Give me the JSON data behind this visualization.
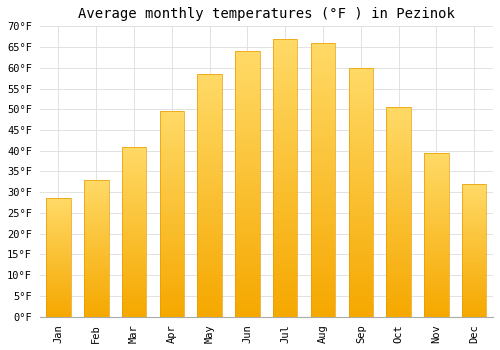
{
  "title": "Average monthly temperatures (°F ) in Pezinok",
  "months": [
    "Jan",
    "Feb",
    "Mar",
    "Apr",
    "May",
    "Jun",
    "Jul",
    "Aug",
    "Sep",
    "Oct",
    "Nov",
    "Dec"
  ],
  "values": [
    28.5,
    33,
    41,
    49.5,
    58.5,
    64,
    67,
    66,
    60,
    50.5,
    39.5,
    32
  ],
  "bar_color_bottom": "#F5A800",
  "bar_color_top": "#FFD966",
  "bar_edge_color": "#E89A00",
  "ylim": [
    0,
    70
  ],
  "yticks": [
    0,
    5,
    10,
    15,
    20,
    25,
    30,
    35,
    40,
    45,
    50,
    55,
    60,
    65,
    70
  ],
  "ytick_labels": [
    "0°F",
    "5°F",
    "10°F",
    "15°F",
    "20°F",
    "25°F",
    "30°F",
    "35°F",
    "40°F",
    "45°F",
    "50°F",
    "55°F",
    "60°F",
    "65°F",
    "70°F"
  ],
  "bg_color": "#ffffff",
  "grid_color": "#dddddd",
  "title_fontsize": 10,
  "tick_fontsize": 7.5,
  "bar_width": 0.65
}
